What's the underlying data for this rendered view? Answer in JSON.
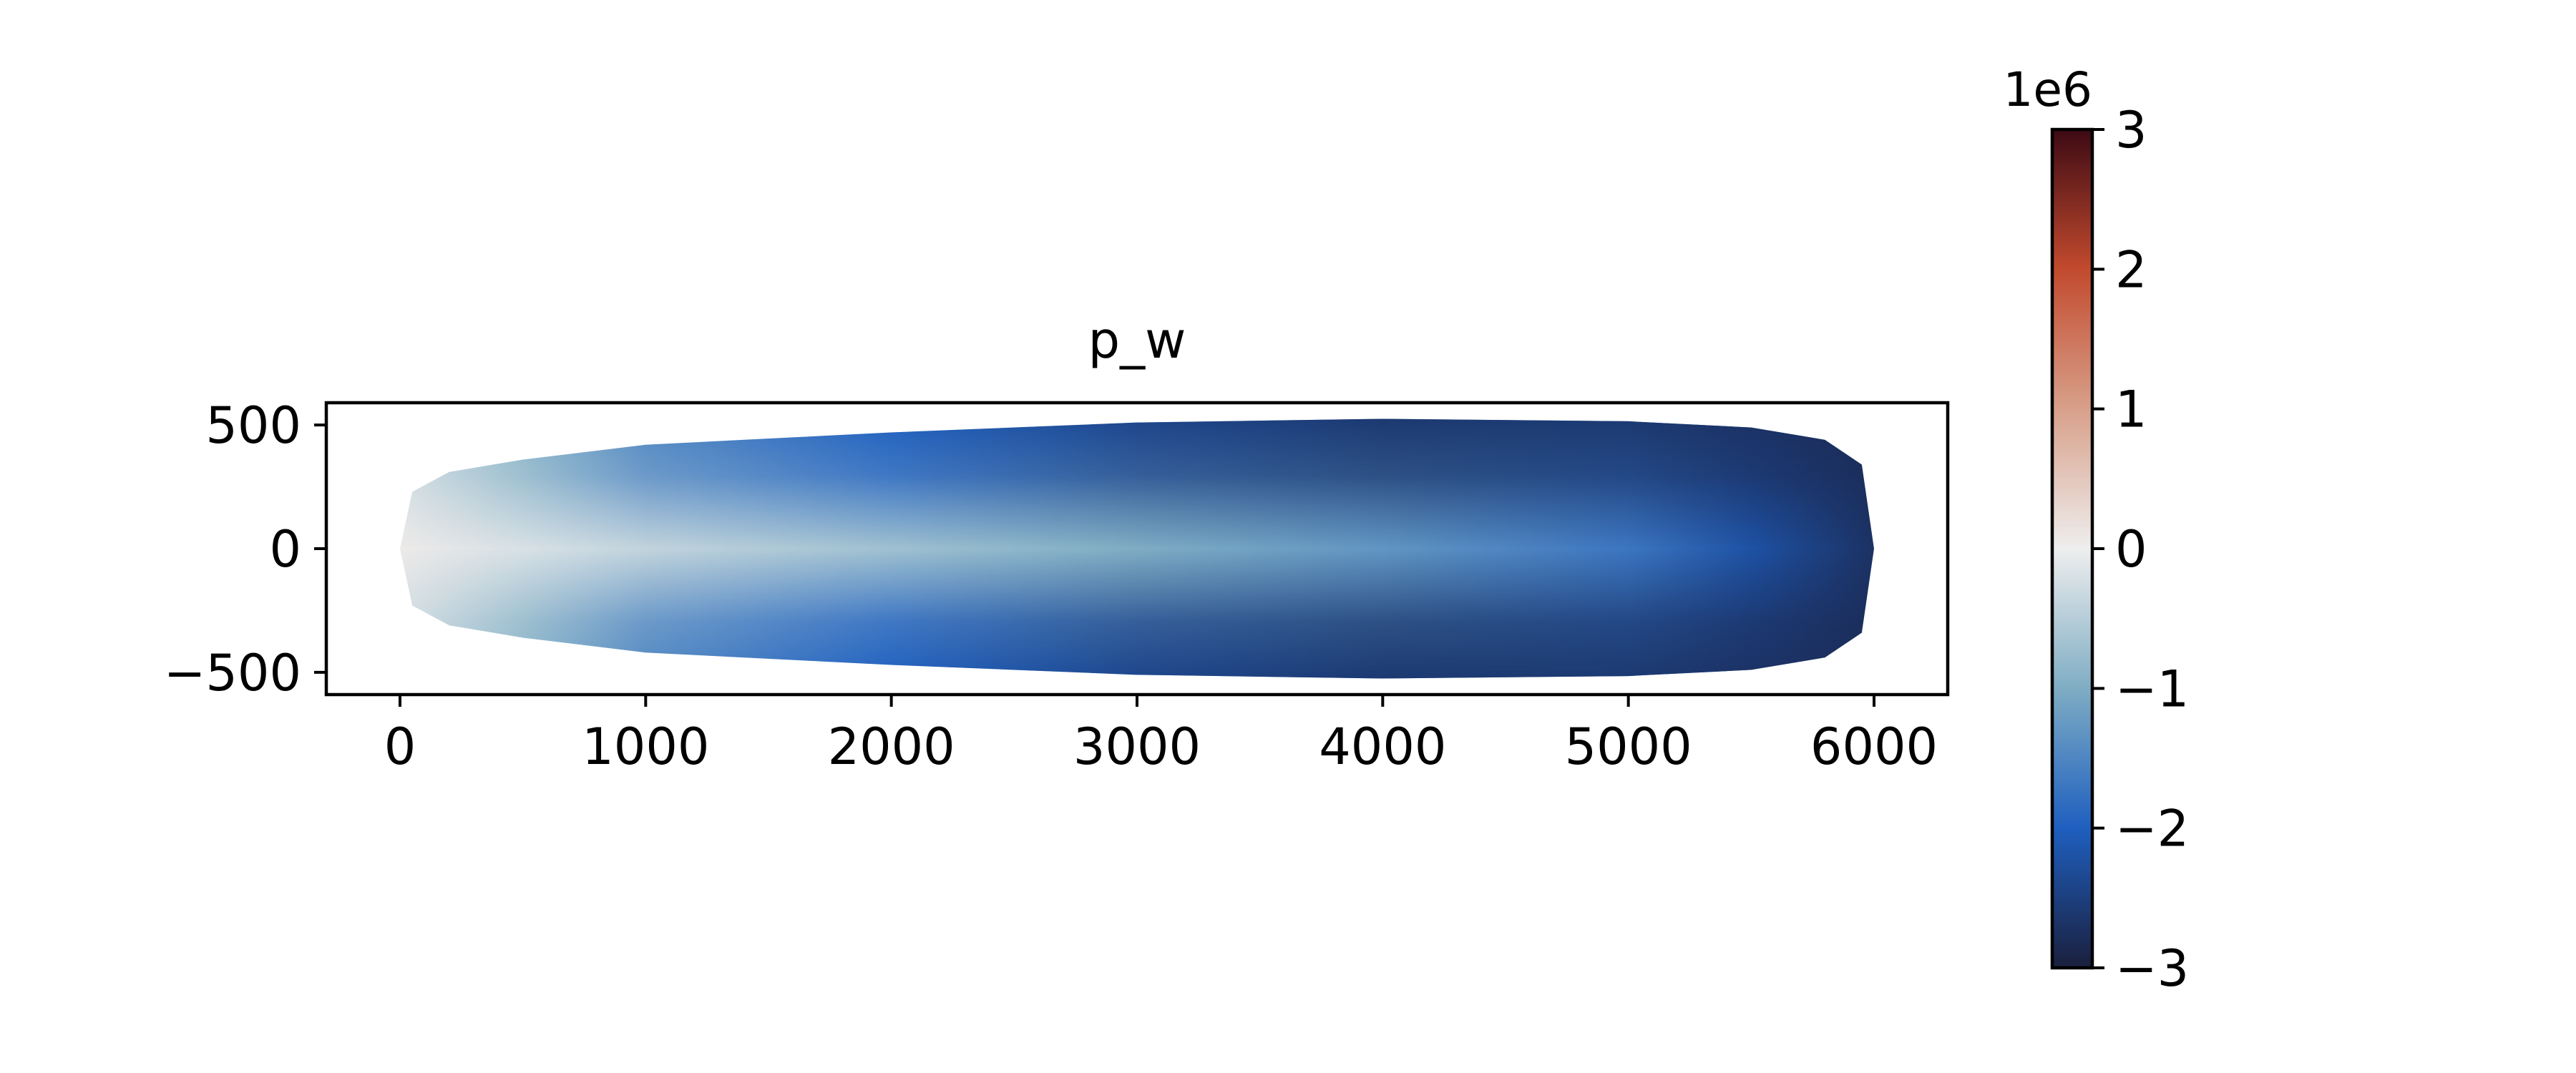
{
  "chart_data": {
    "type": "heatmap",
    "title": "p_w",
    "xlabel": "",
    "ylabel": "",
    "xlim": [
      -300,
      6300
    ],
    "ylim": [
      -590,
      590
    ],
    "x_ticks": [
      0,
      1000,
      2000,
      3000,
      4000,
      5000,
      6000
    ],
    "x_tick_labels": [
      "0",
      "1000",
      "2000",
      "3000",
      "4000",
      "5000",
      "6000"
    ],
    "y_ticks": [
      500,
      0,
      -500
    ],
    "y_tick_labels": [
      "500",
      "0",
      "−500"
    ],
    "grid": false,
    "domain_shape": {
      "x_start": 0,
      "x_end": 6000,
      "half_width_profile": [
        [
          0,
          0
        ],
        [
          50,
          230
        ],
        [
          200,
          310
        ],
        [
          500,
          360
        ],
        [
          1000,
          420
        ],
        [
          2000,
          470
        ],
        [
          3000,
          510
        ],
        [
          4000,
          525
        ],
        [
          5000,
          515
        ],
        [
          5500,
          490
        ],
        [
          5800,
          440
        ],
        [
          5950,
          340
        ],
        [
          6000,
          0
        ]
      ]
    },
    "field_profile": {
      "description_units": "p_w values along the domain centerline (data units)",
      "x": [
        0,
        500,
        1000,
        2000,
        3000,
        4000,
        5000,
        5500,
        6000
      ],
      "center_values": [
        50000,
        -200000,
        -400000,
        -700000,
        -1000000,
        -1300000,
        -1700000,
        -2200000,
        -2700000
      ],
      "edge_values": [
        -300000,
        -900000,
        -1500000,
        -2000000,
        -2400000,
        -2600000,
        -2600000,
        -2700000,
        -2800000
      ]
    },
    "colorbar": {
      "colormap": "diverging blue-white-red",
      "vmin": -3,
      "vmax": 3,
      "ticks": [
        3,
        2,
        1,
        0,
        -1,
        -2,
        -3
      ],
      "tick_labels": [
        "3",
        "2",
        "1",
        "0",
        "−1",
        "−2",
        "−3"
      ],
      "multiplier_label": "1e6",
      "colors": {
        "-3": "#1a1f3d",
        "-2": "#1f5fbf",
        "-1": "#7fadc4",
        "0": "#eeeeee",
        "1": "#d8a08a",
        "2": "#c24a2e",
        "3": "#3d0a14"
      }
    }
  }
}
